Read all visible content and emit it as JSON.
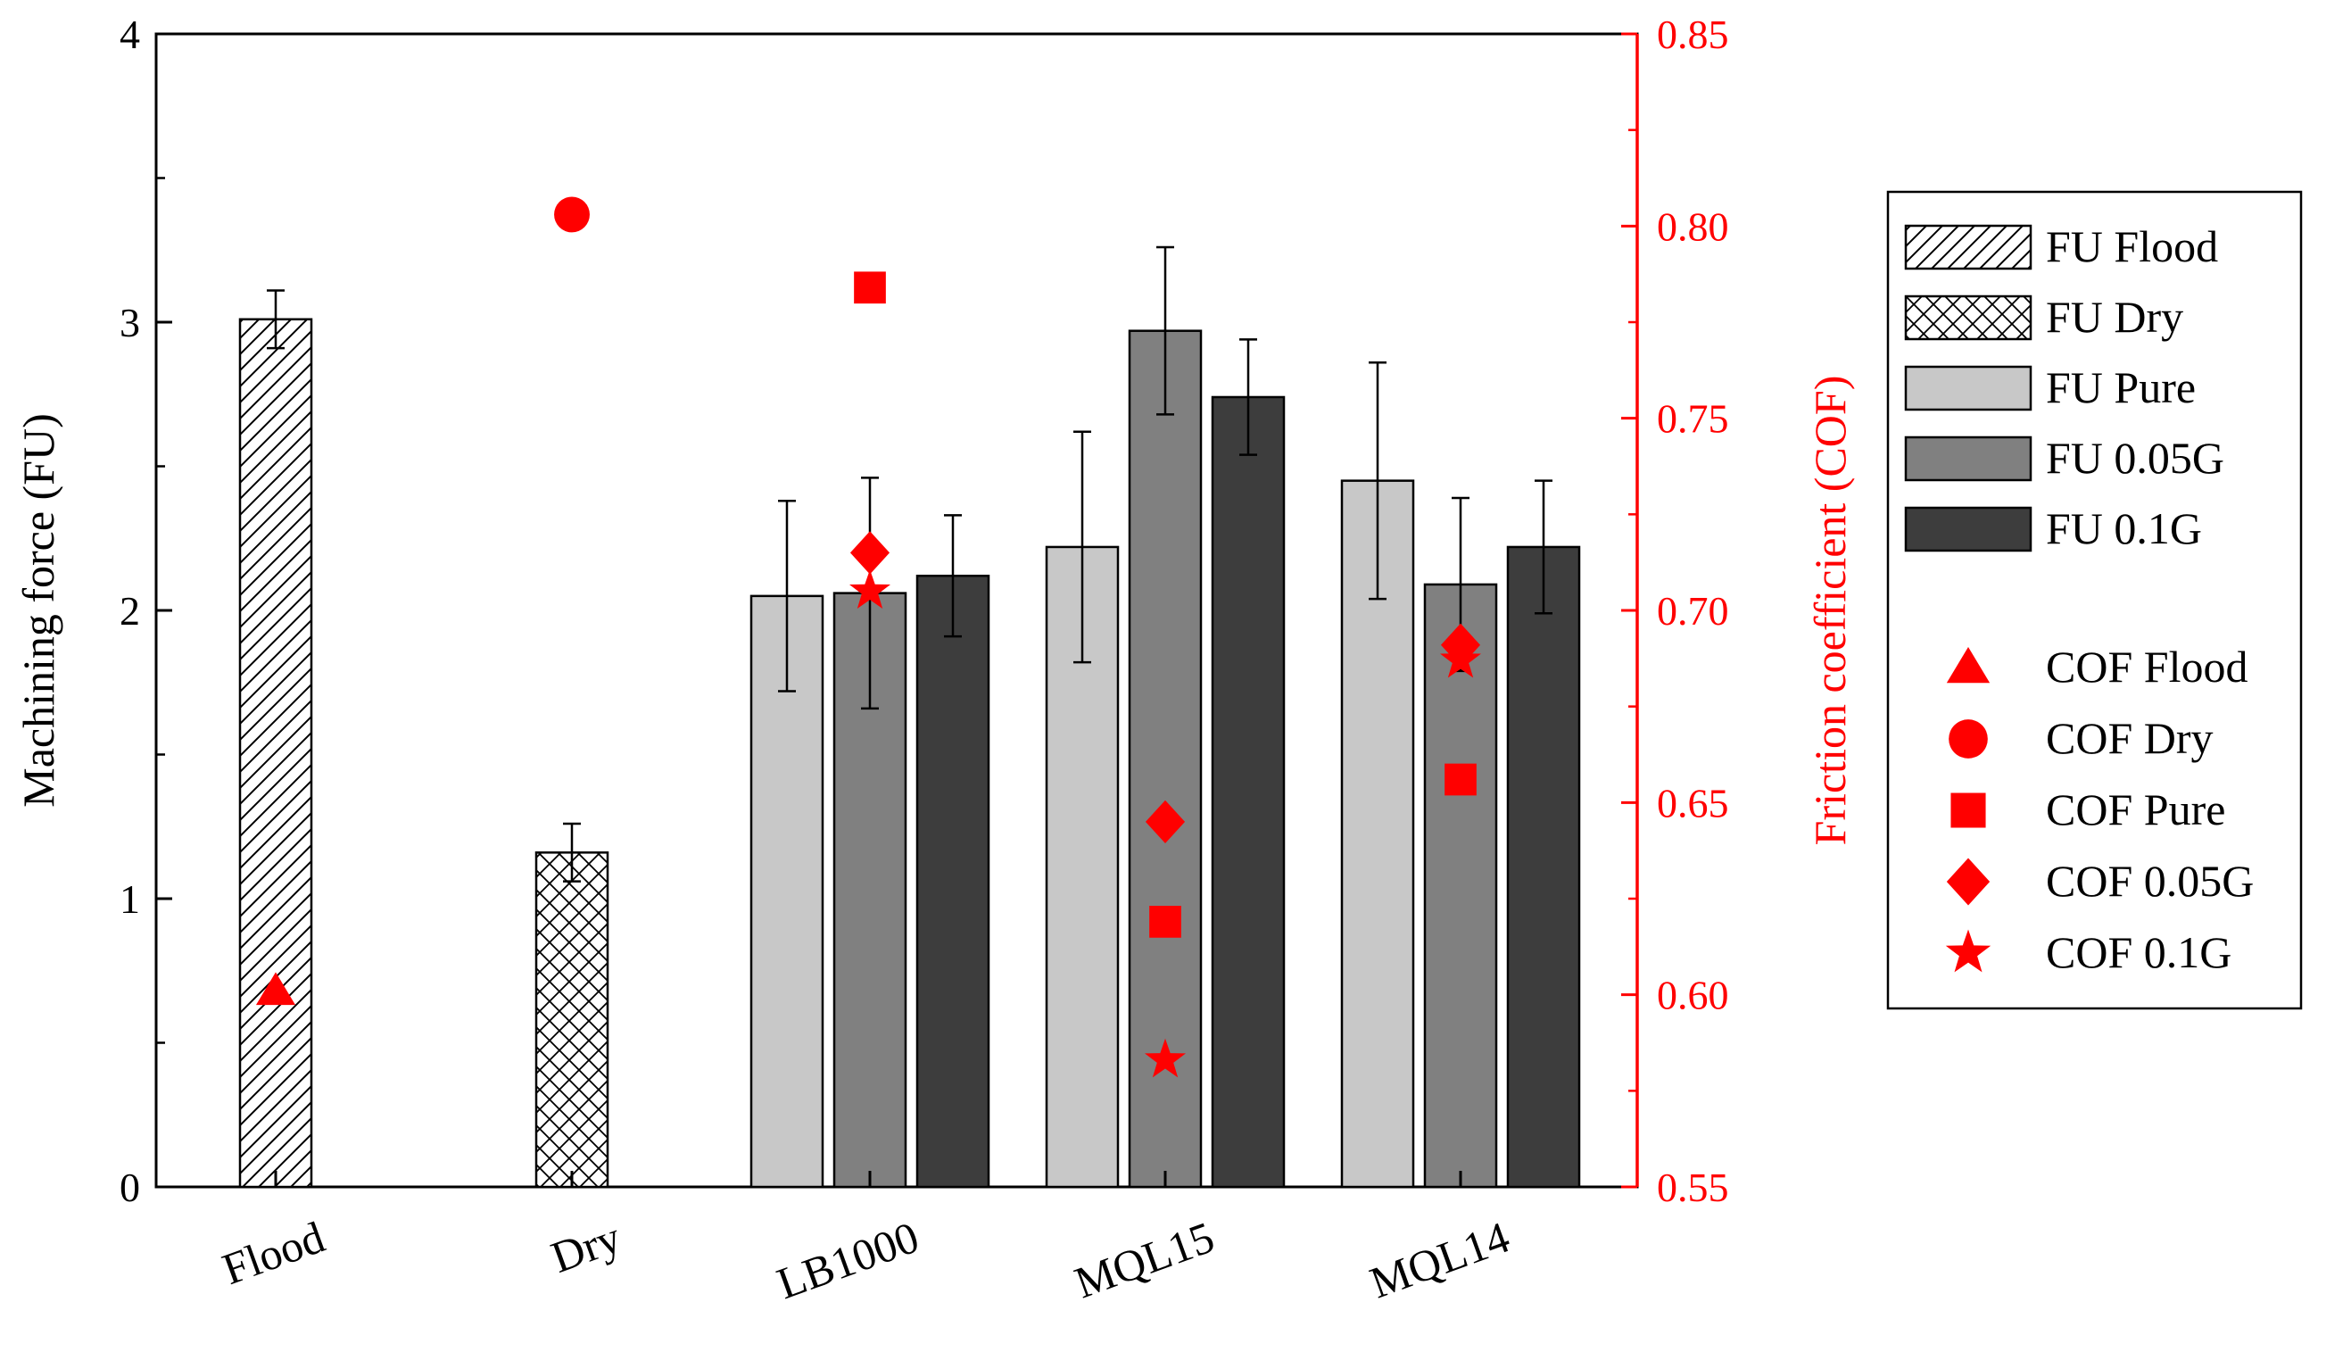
{
  "chart_data": {
    "type": "bar",
    "categories": [
      "Flood",
      "Dry",
      "LB1000",
      "MQL15",
      "MQL14"
    ],
    "ylabel": "Machining force (FU)",
    "y2label": "Friction coefficient (COF)",
    "ylim": [
      0,
      4
    ],
    "y2lim": [
      0.55,
      0.85
    ],
    "yticks": [
      "0",
      "1",
      "2",
      "3",
      "4"
    ],
    "y2ticks": [
      "0.55",
      "0.60",
      "0.65",
      "0.70",
      "0.75",
      "0.80",
      "0.85"
    ],
    "fu_series": [
      {
        "name": "FU Flood",
        "pattern": "diagonal-hatch",
        "category": 0,
        "slot": 0,
        "value": 3.01,
        "error": 0.1
      },
      {
        "name": "FU Dry",
        "pattern": "cross-hatch",
        "category": 1,
        "slot": 0,
        "value": 1.16,
        "error": 0.1
      },
      {
        "name": "FU Pure",
        "fill": "#c8c8c8",
        "category": 2,
        "slot": -1,
        "value": 2.05,
        "error": 0.33
      },
      {
        "name": "FU 0.05G",
        "fill": "#808080",
        "category": 2,
        "slot": 0,
        "value": 2.06,
        "error": 0.4
      },
      {
        "name": "FU 0.1G",
        "fill": "#3d3d3d",
        "category": 2,
        "slot": 1,
        "value": 2.12,
        "error": 0.21
      },
      {
        "name": "FU Pure",
        "fill": "#c8c8c8",
        "category": 3,
        "slot": -1,
        "value": 2.22,
        "error": 0.4
      },
      {
        "name": "FU 0.05G",
        "fill": "#808080",
        "category": 3,
        "slot": 0,
        "value": 2.97,
        "error": 0.29
      },
      {
        "name": "FU 0.1G",
        "fill": "#3d3d3d",
        "category": 3,
        "slot": 1,
        "value": 2.74,
        "error": 0.2
      },
      {
        "name": "FU Pure",
        "fill": "#c8c8c8",
        "category": 4,
        "slot": -1,
        "value": 2.45,
        "error": 0.41
      },
      {
        "name": "FU 0.05G",
        "fill": "#808080",
        "category": 4,
        "slot": 0,
        "value": 2.09,
        "error": 0.3
      },
      {
        "name": "FU 0.1G",
        "fill": "#3d3d3d",
        "category": 4,
        "slot": 1,
        "value": 2.22,
        "error": 0.23
      }
    ],
    "cof_points": [
      {
        "name": "COF Flood",
        "marker": "triangle",
        "category": 0,
        "value": 0.601
      },
      {
        "name": "COF Dry",
        "marker": "circle",
        "category": 1,
        "value": 0.803
      },
      {
        "name": "COF Pure",
        "marker": "square",
        "category": 2,
        "value": 0.784
      },
      {
        "name": "COF 0.05G",
        "marker": "diamond",
        "category": 2,
        "value": 0.715
      },
      {
        "name": "COF 0.1G",
        "marker": "star",
        "category": 2,
        "value": 0.705
      },
      {
        "name": "COF 0.05G",
        "marker": "diamond",
        "category": 3,
        "value": 0.645
      },
      {
        "name": "COF Pure",
        "marker": "square",
        "category": 3,
        "value": 0.619
      },
      {
        "name": "COF 0.1G",
        "marker": "star",
        "category": 3,
        "value": 0.583
      },
      {
        "name": "COF 0.05G",
        "marker": "diamond",
        "category": 4,
        "value": 0.691
      },
      {
        "name": "COF 0.1G",
        "marker": "star",
        "category": 4,
        "value": 0.687
      },
      {
        "name": "COF Pure",
        "marker": "square",
        "category": 4,
        "value": 0.656
      }
    ],
    "legend": {
      "position": "right",
      "bar_entries": [
        {
          "label": "FU Flood",
          "pattern": "diagonal-hatch"
        },
        {
          "label": "FU Dry",
          "pattern": "cross-hatch"
        },
        {
          "label": "FU Pure",
          "fill": "#c8c8c8"
        },
        {
          "label": "FU 0.05G",
          "fill": "#808080"
        },
        {
          "label": "FU 0.1G",
          "fill": "#3d3d3d"
        }
      ],
      "marker_entries": [
        {
          "label": "COF Flood",
          "marker": "triangle"
        },
        {
          "label": "COF Dry",
          "marker": "circle"
        },
        {
          "label": "COF Pure",
          "marker": "square"
        },
        {
          "label": "COF 0.05G",
          "marker": "diamond"
        },
        {
          "label": "COF 0.1G",
          "marker": "star"
        }
      ]
    }
  },
  "colors": {
    "cof": "#ff0000",
    "axis": "#000000"
  }
}
